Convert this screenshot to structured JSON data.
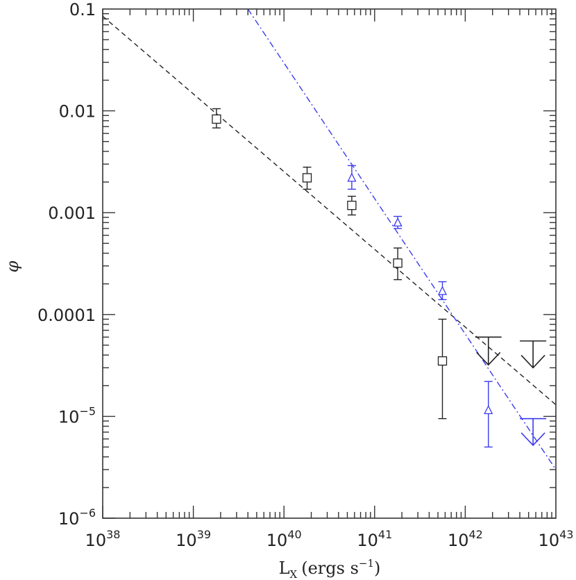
{
  "chart_data": {
    "type": "scatter",
    "title": "",
    "xlabel": "L",
    "xlabel_sub": "X",
    "xlabel_units": "(ergs s",
    "xlabel_units_sup": "−1",
    "xlabel_units_close": ")",
    "ylabel": "φ",
    "xscale": "log",
    "yscale": "log",
    "xlim": [
      1e+38,
      1e+43
    ],
    "ylim": [
      1e-06,
      0.1
    ],
    "x_tick_labels": [
      {
        "value": 1e+38,
        "base": "10",
        "exp": "38"
      },
      {
        "value": 1e+39,
        "base": "10",
        "exp": "39"
      },
      {
        "value": 1e+40,
        "base": "10",
        "exp": "40"
      },
      {
        "value": 1e+41,
        "base": "10",
        "exp": "41"
      },
      {
        "value": 1e+42,
        "base": "10",
        "exp": "42"
      },
      {
        "value": 1e+43,
        "base": "10",
        "exp": "43"
      }
    ],
    "y_tick_labels": [
      {
        "value": 0.1,
        "text": "0.1",
        "base": "",
        "exp": ""
      },
      {
        "value": 0.01,
        "text": "0.01",
        "base": "",
        "exp": ""
      },
      {
        "value": 0.001,
        "text": "0.001",
        "base": "",
        "exp": ""
      },
      {
        "value": 0.0001,
        "text": "0.0001",
        "base": "",
        "exp": ""
      },
      {
        "value": 1e-05,
        "text": "",
        "base": "10",
        "exp": "−5"
      },
      {
        "value": 1e-06,
        "text": "",
        "base": "10",
        "exp": "−6"
      }
    ],
    "series": [
      {
        "marker": "square",
        "color": "#222222",
        "points": [
          {
            "x": 1.8e+39,
            "y": 0.0083,
            "ylo": 0.0068,
            "yhi": 0.0105
          },
          {
            "x": 1.8e+40,
            "y": 0.0022,
            "ylo": 0.0017,
            "yhi": 0.0028
          },
          {
            "x": 5.6e+40,
            "y": 0.00118,
            "ylo": 0.00095,
            "yhi": 0.00145
          },
          {
            "x": 1.8e+41,
            "y": 0.00032,
            "ylo": 0.00022,
            "yhi": 0.00045
          },
          {
            "x": 5.6e+41,
            "y": 3.5e-05,
            "ylo": 9.5e-06,
            "yhi": 9e-05
          }
        ],
        "upper_limits": [
          {
            "x": 1.8e+42,
            "y": 6e-05,
            "ytip": 3.2e-05
          },
          {
            "x": 5.6e+42,
            "y": 5.5e-05,
            "ytip": 3e-05
          }
        ],
        "fit_line": {
          "style": "dashed",
          "x": [
            1e+38,
            1e+43
          ],
          "y": [
            0.085,
            1.3e-05
          ]
        }
      },
      {
        "marker": "triangle",
        "color": "#3a3aee",
        "points": [
          {
            "x": 5.6e+40,
            "y": 0.0022,
            "ylo": 0.0017,
            "yhi": 0.0029
          },
          {
            "x": 1.8e+41,
            "y": 0.0008,
            "ylo": 0.0007,
            "yhi": 0.00092
          },
          {
            "x": 5.6e+41,
            "y": 0.00017,
            "ylo": 0.00014,
            "yhi": 0.00021
          },
          {
            "x": 1.8e+42,
            "y": 1.15e-05,
            "ylo": 5e-06,
            "yhi": 2.2e-05
          }
        ],
        "upper_limits": [
          {
            "x": 5.6e+42,
            "y": 9.5e-06,
            "ytip": 5.2e-06
          }
        ],
        "fit_line": {
          "style": "dashdot",
          "x": [
            4e+39,
            1e+43
          ],
          "y": [
            0.1,
            3e-06
          ]
        }
      }
    ],
    "grid": false,
    "legend": "none"
  }
}
